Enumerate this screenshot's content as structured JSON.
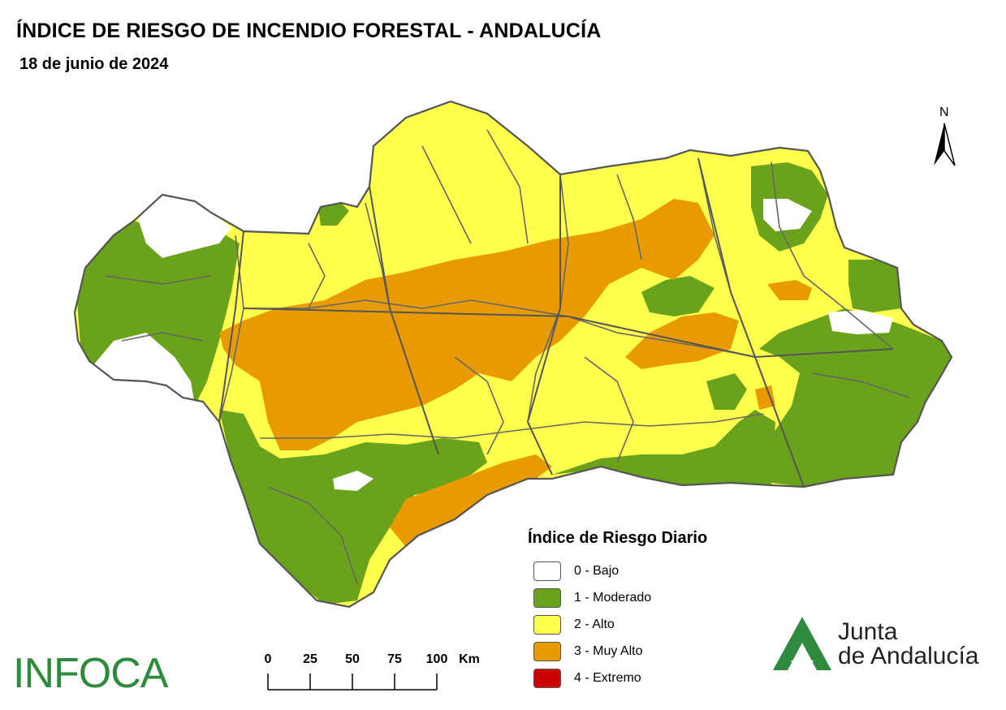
{
  "title": "ÍNDICE DE RIESGO DE INCENDIO FORESTAL - ANDALUCÍA",
  "date": "18 de junio de 2024",
  "north_label": "N",
  "legend": {
    "title": "Índice de Riesgo Diario",
    "items": [
      {
        "label": "0 - Bajo",
        "color": "#ffffff"
      },
      {
        "label": "1 - Moderado",
        "color": "#6aa31b"
      },
      {
        "label": "2 - Alto",
        "color": "#ffff4d"
      },
      {
        "label": "3 - Muy Alto",
        "color": "#e89b00"
      },
      {
        "label": "4 - Extremo",
        "color": "#cc0000"
      }
    ]
  },
  "scale_bar": {
    "ticks": [
      "0",
      "25",
      "50",
      "75",
      "100"
    ],
    "unit": "Km"
  },
  "logos": {
    "infoca": "INFOCA",
    "junta_line1": "Junta",
    "junta_line2": "de Andalucía"
  },
  "colors": {
    "bajo": "#ffffff",
    "moderado": "#6aa31b",
    "alto": "#ffff4d",
    "muy_alto": "#e89b00",
    "border": "#666666",
    "infoca_green": "#2e8b3d"
  }
}
